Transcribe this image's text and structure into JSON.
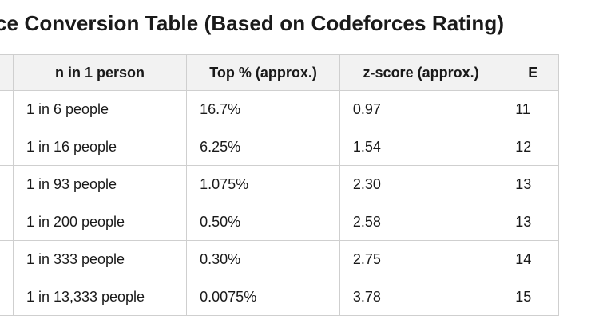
{
  "title": "ce Conversion Table (Based on Codeforces Rating)",
  "table": {
    "headers": [
      "",
      "n in 1 person",
      "Top % (approx.)",
      "z-score (approx.)",
      "E"
    ],
    "rows": [
      [
        "",
        "1 in 6 people",
        "16.7%",
        "0.97",
        "11"
      ],
      [
        "",
        "1 in 16 people",
        "6.25%",
        "1.54",
        "12"
      ],
      [
        "",
        "1 in 93 people",
        "1.075%",
        "2.30",
        "13"
      ],
      [
        "",
        "1 in 200 people",
        "0.50%",
        "2.58",
        "13"
      ],
      [
        "",
        "1 in 333 people",
        "0.30%",
        "2.75",
        "14"
      ],
      [
        "",
        "1 in 13,333 people",
        "0.0075%",
        "3.78",
        "15"
      ]
    ]
  }
}
